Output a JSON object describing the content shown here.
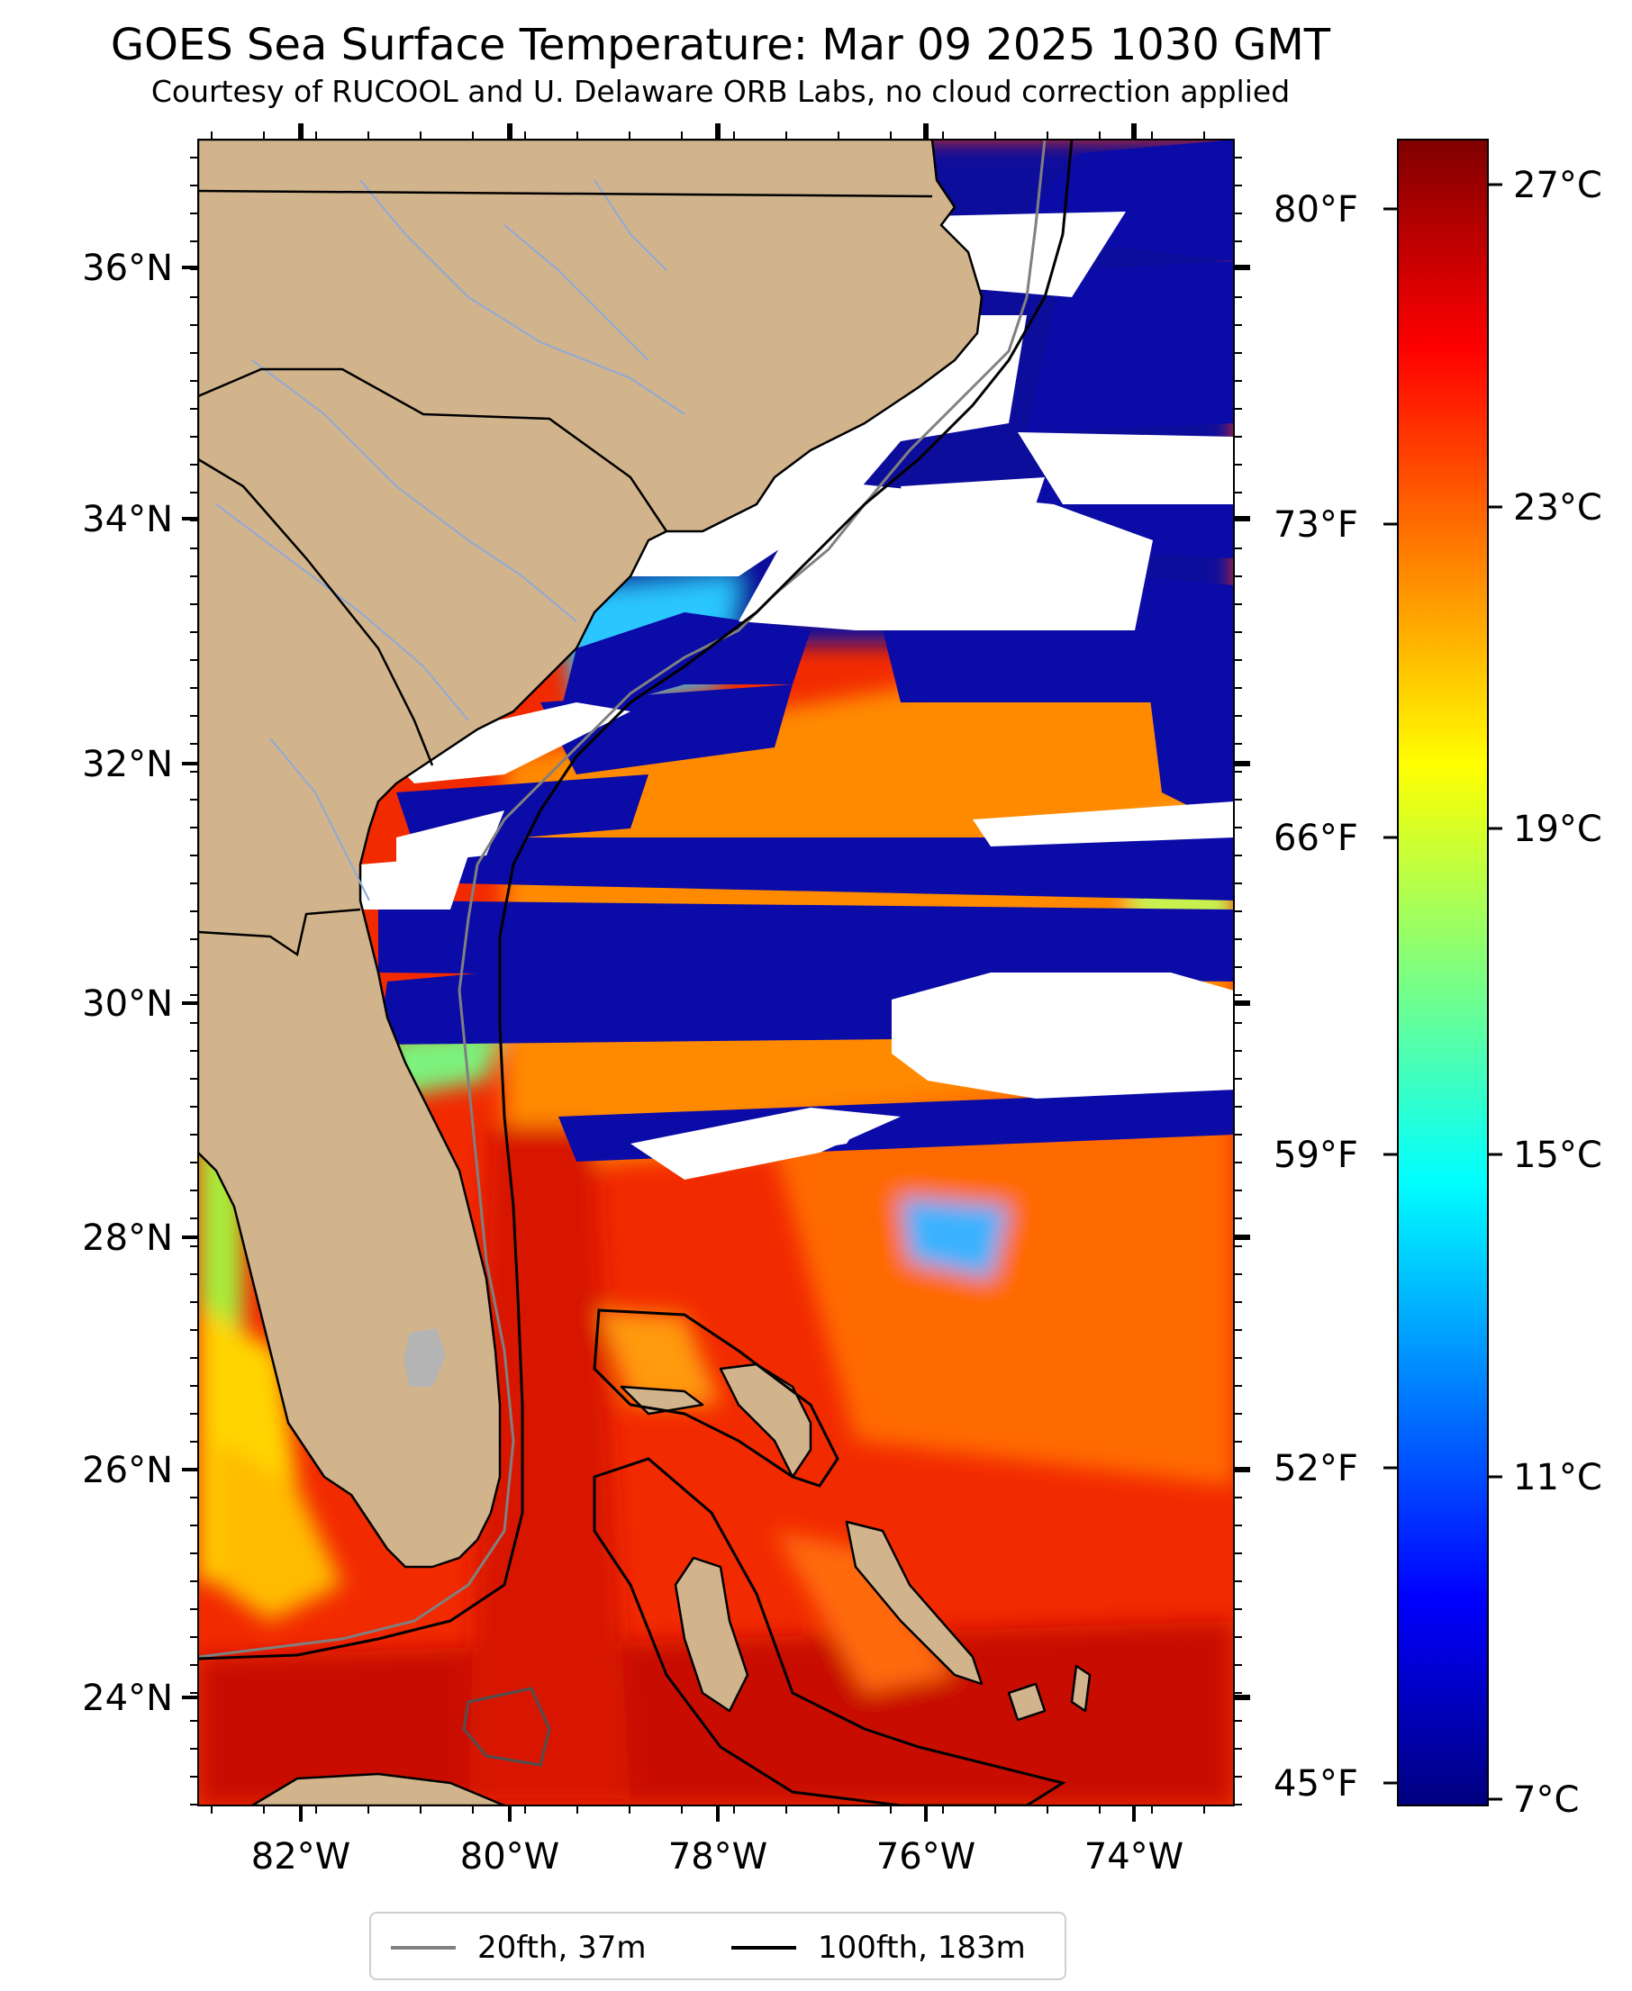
{
  "title": "GOES Sea Surface Temperature: Mar 09 2025 1030 GMT",
  "subtitle": "Courtesy of RUCOOL and U. Delaware ORB Labs, no cloud correction applied",
  "lat_labels": [
    "36°N",
    "34°N",
    "32°N",
    "30°N",
    "28°N",
    "26°N",
    "24°N"
  ],
  "lon_labels": [
    "82°W",
    "80°W",
    "78°W",
    "76°W",
    "74°W"
  ],
  "fahrenheit_labels": [
    "80°F",
    "73°F",
    "66°F",
    "59°F",
    "52°F",
    "45°F"
  ],
  "colorbar": {
    "labels": [
      "27°C",
      "23°C",
      "19°C",
      "15°C",
      "11°C",
      "7°C"
    ],
    "range_c": [
      7,
      27.5
    ],
    "colors": [
      "#00007f",
      "#0000ff",
      "#007fff",
      "#00ffff",
      "#7fff7f",
      "#ffff00",
      "#ff7f00",
      "#ff0000",
      "#7f0000"
    ]
  },
  "legend": [
    {
      "label": "20fth, 37m",
      "color": "#808080"
    },
    {
      "label": "100fth, 183m",
      "color": "#000000"
    }
  ],
  "colors": {
    "land": "#d2b48c",
    "cloud": "#ffffff",
    "state_border": "#000000",
    "river": "#8fa9d6",
    "lake": "#b4b4b4"
  }
}
